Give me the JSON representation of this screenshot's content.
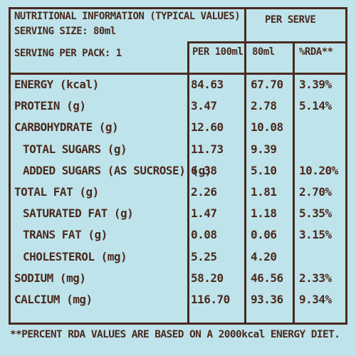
{
  "header": {
    "title": "NUTRITIONAL INFORMATION (TYPICAL VALUES)",
    "serving_size": "SERVING SIZE: 80ml",
    "serving_per_pack": "SERVING PER PACK: 1",
    "per_serve": "PER SERVE",
    "col_per100": "PER 100ml",
    "col_80ml": "80ml",
    "col_rda": "%RDA**"
  },
  "rows": [
    {
      "label": "ENERGY (kcal)",
      "per100": "84.63",
      "per80": "67.70",
      "rda": "3.39%",
      "indent": 0
    },
    {
      "label": "PROTEIN (g)",
      "per100": "3.47",
      "per80": "2.78",
      "rda": "5.14%",
      "indent": 0
    },
    {
      "label": "CARBOHYDRATE (g)",
      "per100": "12.60",
      "per80": "10.08",
      "rda": "",
      "indent": 0
    },
    {
      "label": "TOTAL SUGARS (g)",
      "per100": "11.73",
      "per80": "9.39",
      "rda": "",
      "indent": 1
    },
    {
      "label": "ADDED SUGARS (AS SUCROSE) (g)",
      "per100": "6.38",
      "per80": "5.10",
      "rda": "10.20%",
      "indent": 1
    },
    {
      "label": "TOTAL FAT (g)",
      "per100": "2.26",
      "per80": "1.81",
      "rda": "2.70%",
      "indent": 0
    },
    {
      "label": "SATURATED FAT (g)",
      "per100": "1.47",
      "per80": "1.18",
      "rda": "5.35%",
      "indent": 1
    },
    {
      "label": "TRANS FAT (g)",
      "per100": "0.08",
      "per80": "0.06",
      "rda": "3.15%",
      "indent": 1
    },
    {
      "label": "CHOLESTEROL (mg)",
      "per100": "5.25",
      "per80": "4.20",
      "rda": "",
      "indent": 1
    },
    {
      "label": "SODIUM (mg)",
      "per100": "58.20",
      "per80": "46.56",
      "rda": "2.33%",
      "indent": 0
    },
    {
      "label": "CALCIUM (mg)",
      "per100": "116.70",
      "per80": "93.36",
      "rda": "9.34%",
      "indent": 0
    }
  ],
  "footnote": "**PERCENT RDA VALUES ARE BASED ON A 2000kcal ENERGY DIET.",
  "colors": {
    "background": "#bfe3ea",
    "ink": "#4a2a1f"
  }
}
